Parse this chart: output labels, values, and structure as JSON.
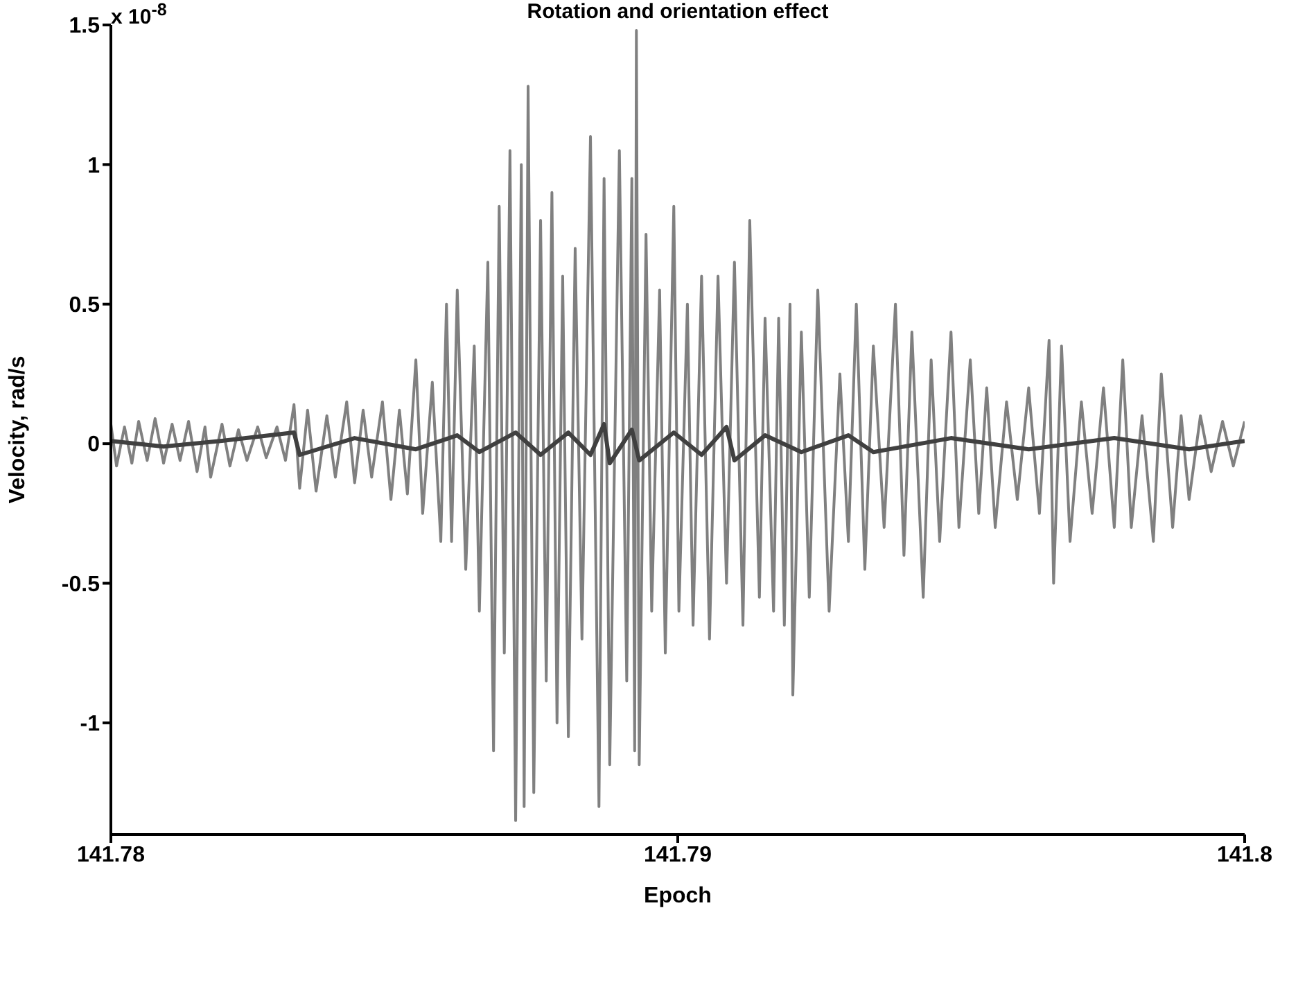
{
  "chart_data": {
    "type": "line",
    "title": "Rotation and orientation effect",
    "xlabel": "Epoch",
    "ylabel": "Velocity, rad/s",
    "annotations": [
      "x 10$^{-8}$"
    ],
    "xlim": [
      141.78,
      141.8
    ],
    "xticks": [
      141.78,
      141.79,
      141.8
    ],
    "ylim": [
      -1.4,
      1.5
    ],
    "yticks": [
      -1,
      -0.5,
      0,
      0.5,
      1,
      1.5
    ],
    "series": [
      {
        "color": "#808080",
        "x": [
          141.78,
          141.7801,
          141.78024,
          141.78037,
          141.78049,
          141.78064,
          141.78078,
          141.78093,
          141.78108,
          141.78122,
          141.78137,
          141.78152,
          141.78166,
          141.78176,
          141.78196,
          141.7821,
          141.78225,
          141.7824,
          141.78259,
          141.78274,
          141.78293,
          141.78308,
          141.78323,
          141.78333,
          141.78347,
          141.78362,
          141.78381,
          141.78396,
          141.78416,
          141.7843,
          141.78445,
          141.7846,
          141.78479,
          141.78494,
          141.78509,
          141.78523,
          141.78538,
          141.7855,
          141.78567,
          141.78582,
          141.78592,
          141.78601,
          141.78611,
          141.78626,
          141.78641,
          141.7865,
          141.78665,
          141.78675,
          141.78685,
          141.78694,
          141.78704,
          141.78714,
          141.78724,
          141.78729,
          141.78736,
          141.78746,
          141.78758,
          141.78768,
          141.78778,
          141.78787,
          141.78797,
          141.78807,
          141.78819,
          141.78831,
          141.78846,
          141.78861,
          141.7887,
          141.7888,
          141.78897,
          141.7891,
          141.78919,
          141.78924,
          141.78927,
          141.78932,
          141.78944,
          141.78954,
          141.78968,
          141.78978,
          141.78993,
          141.79002,
          141.79017,
          141.79027,
          141.79042,
          141.79056,
          141.79071,
          141.79086,
          141.791,
          141.79115,
          141.79127,
          141.79144,
          141.79154,
          141.79169,
          141.79178,
          141.79188,
          141.79198,
          141.79203,
          141.79218,
          141.79232,
          141.79247,
          141.79267,
          141.79286,
          141.79301,
          141.79315,
          141.7933,
          141.79345,
          141.79364,
          141.79384,
          141.79399,
          141.79413,
          141.79433,
          141.79447,
          141.79462,
          141.79482,
          141.79496,
          141.79516,
          141.79531,
          141.79545,
          141.7956,
          141.7958,
          141.79599,
          141.79619,
          141.79638,
          141.79655,
          141.79663,
          141.79677,
          141.79692,
          141.79712,
          141.79731,
          141.79751,
          141.7977,
          141.79785,
          141.798,
          141.79819,
          141.79839,
          141.79853,
          141.79873,
          141.79888,
          141.79902,
          141.79922,
          141.79941,
          141.79961,
          141.7998,
          141.8
        ],
        "values": [
          0.07,
          -0.08,
          0.06,
          -0.07,
          0.08,
          -0.06,
          0.09,
          -0.07,
          0.07,
          -0.06,
          0.08,
          -0.1,
          0.06,
          -0.12,
          0.07,
          -0.08,
          0.05,
          -0.06,
          0.06,
          -0.05,
          0.06,
          -0.06,
          0.14,
          -0.16,
          0.12,
          -0.17,
          0.1,
          -0.12,
          0.15,
          -0.14,
          0.12,
          -0.12,
          0.15,
          -0.2,
          0.12,
          -0.18,
          0.3,
          -0.25,
          0.22,
          -0.35,
          0.5,
          -0.35,
          0.55,
          -0.45,
          0.35,
          -0.6,
          0.65,
          -1.1,
          0.85,
          -0.75,
          1.05,
          -1.35,
          1.0,
          -1.3,
          1.28,
          -1.25,
          0.8,
          -0.85,
          0.9,
          -1.0,
          0.6,
          -1.05,
          0.7,
          -0.7,
          1.1,
          -1.3,
          0.95,
          -1.15,
          1.05,
          -0.85,
          0.95,
          -1.1,
          1.48,
          -1.15,
          0.75,
          -0.6,
          0.55,
          -0.75,
          0.85,
          -0.6,
          0.5,
          -0.65,
          0.6,
          -0.7,
          0.6,
          -0.5,
          0.65,
          -0.65,
          0.8,
          -0.55,
          0.45,
          -0.6,
          0.45,
          -0.65,
          0.5,
          -0.9,
          0.4,
          -0.55,
          0.55,
          -0.6,
          0.25,
          -0.35,
          0.5,
          -0.45,
          0.35,
          -0.3,
          0.5,
          -0.4,
          0.4,
          -0.55,
          0.3,
          -0.35,
          0.4,
          -0.3,
          0.3,
          -0.25,
          0.2,
          -0.3,
          0.15,
          -0.2,
          0.2,
          -0.25,
          0.37,
          -0.5,
          0.35,
          -0.35,
          0.15,
          -0.25,
          0.2,
          -0.3,
          0.3,
          -0.3,
          0.1,
          -0.35,
          0.25,
          -0.3,
          0.1,
          -0.2,
          0.1,
          -0.1,
          0.08,
          -0.08,
          0.08
        ]
      },
      {
        "color": "#404040",
        "x": [
          141.78,
          141.78093,
          141.78196,
          141.78323,
          141.78333,
          141.7843,
          141.78538,
          141.78611,
          141.7865,
          141.78714,
          141.78758,
          141.78807,
          141.78846,
          141.7887,
          141.7888,
          141.78919,
          141.78932,
          141.78993,
          141.79042,
          141.79086,
          141.791,
          141.79154,
          141.79218,
          141.79301,
          141.79345,
          141.79482,
          141.79619,
          141.7977,
          141.79902,
          141.8
        ],
        "values": [
          0.01,
          -0.01,
          0.01,
          0.04,
          -0.04,
          0.02,
          -0.02,
          0.03,
          -0.03,
          0.04,
          -0.04,
          0.04,
          -0.04,
          0.07,
          -0.07,
          0.05,
          -0.06,
          0.04,
          -0.04,
          0.06,
          -0.06,
          0.03,
          -0.03,
          0.03,
          -0.03,
          0.02,
          -0.02,
          0.02,
          -0.02,
          0.01
        ]
      }
    ]
  }
}
